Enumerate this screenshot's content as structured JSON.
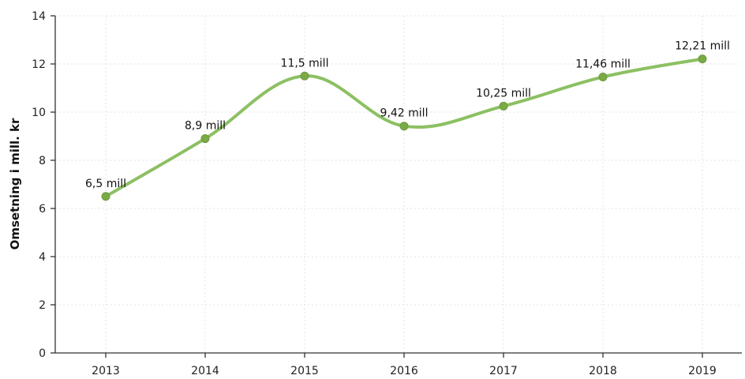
{
  "chart_data": {
    "type": "line",
    "x": [
      "2013",
      "2014",
      "2015",
      "2016",
      "2017",
      "2018",
      "2019"
    ],
    "series": [
      {
        "values": [
          6.5,
          8.9,
          11.5,
          9.42,
          10.25,
          11.46,
          12.21
        ],
        "labels": [
          "6,5 mill",
          "8,9 mill",
          "11,5 mill",
          "9,42 mill",
          "10,25 mill",
          "11,46 mill",
          "12,21 mill"
        ],
        "color": "#8cc063",
        "marker_color": "#7aaa44"
      }
    ],
    "ylabel": "Omsetning i mill. kr",
    "xlabel": "",
    "ylim": [
      0,
      14
    ],
    "yticks": [
      0,
      2,
      4,
      6,
      8,
      10,
      12,
      14
    ],
    "grid": true,
    "smooth": true
  }
}
